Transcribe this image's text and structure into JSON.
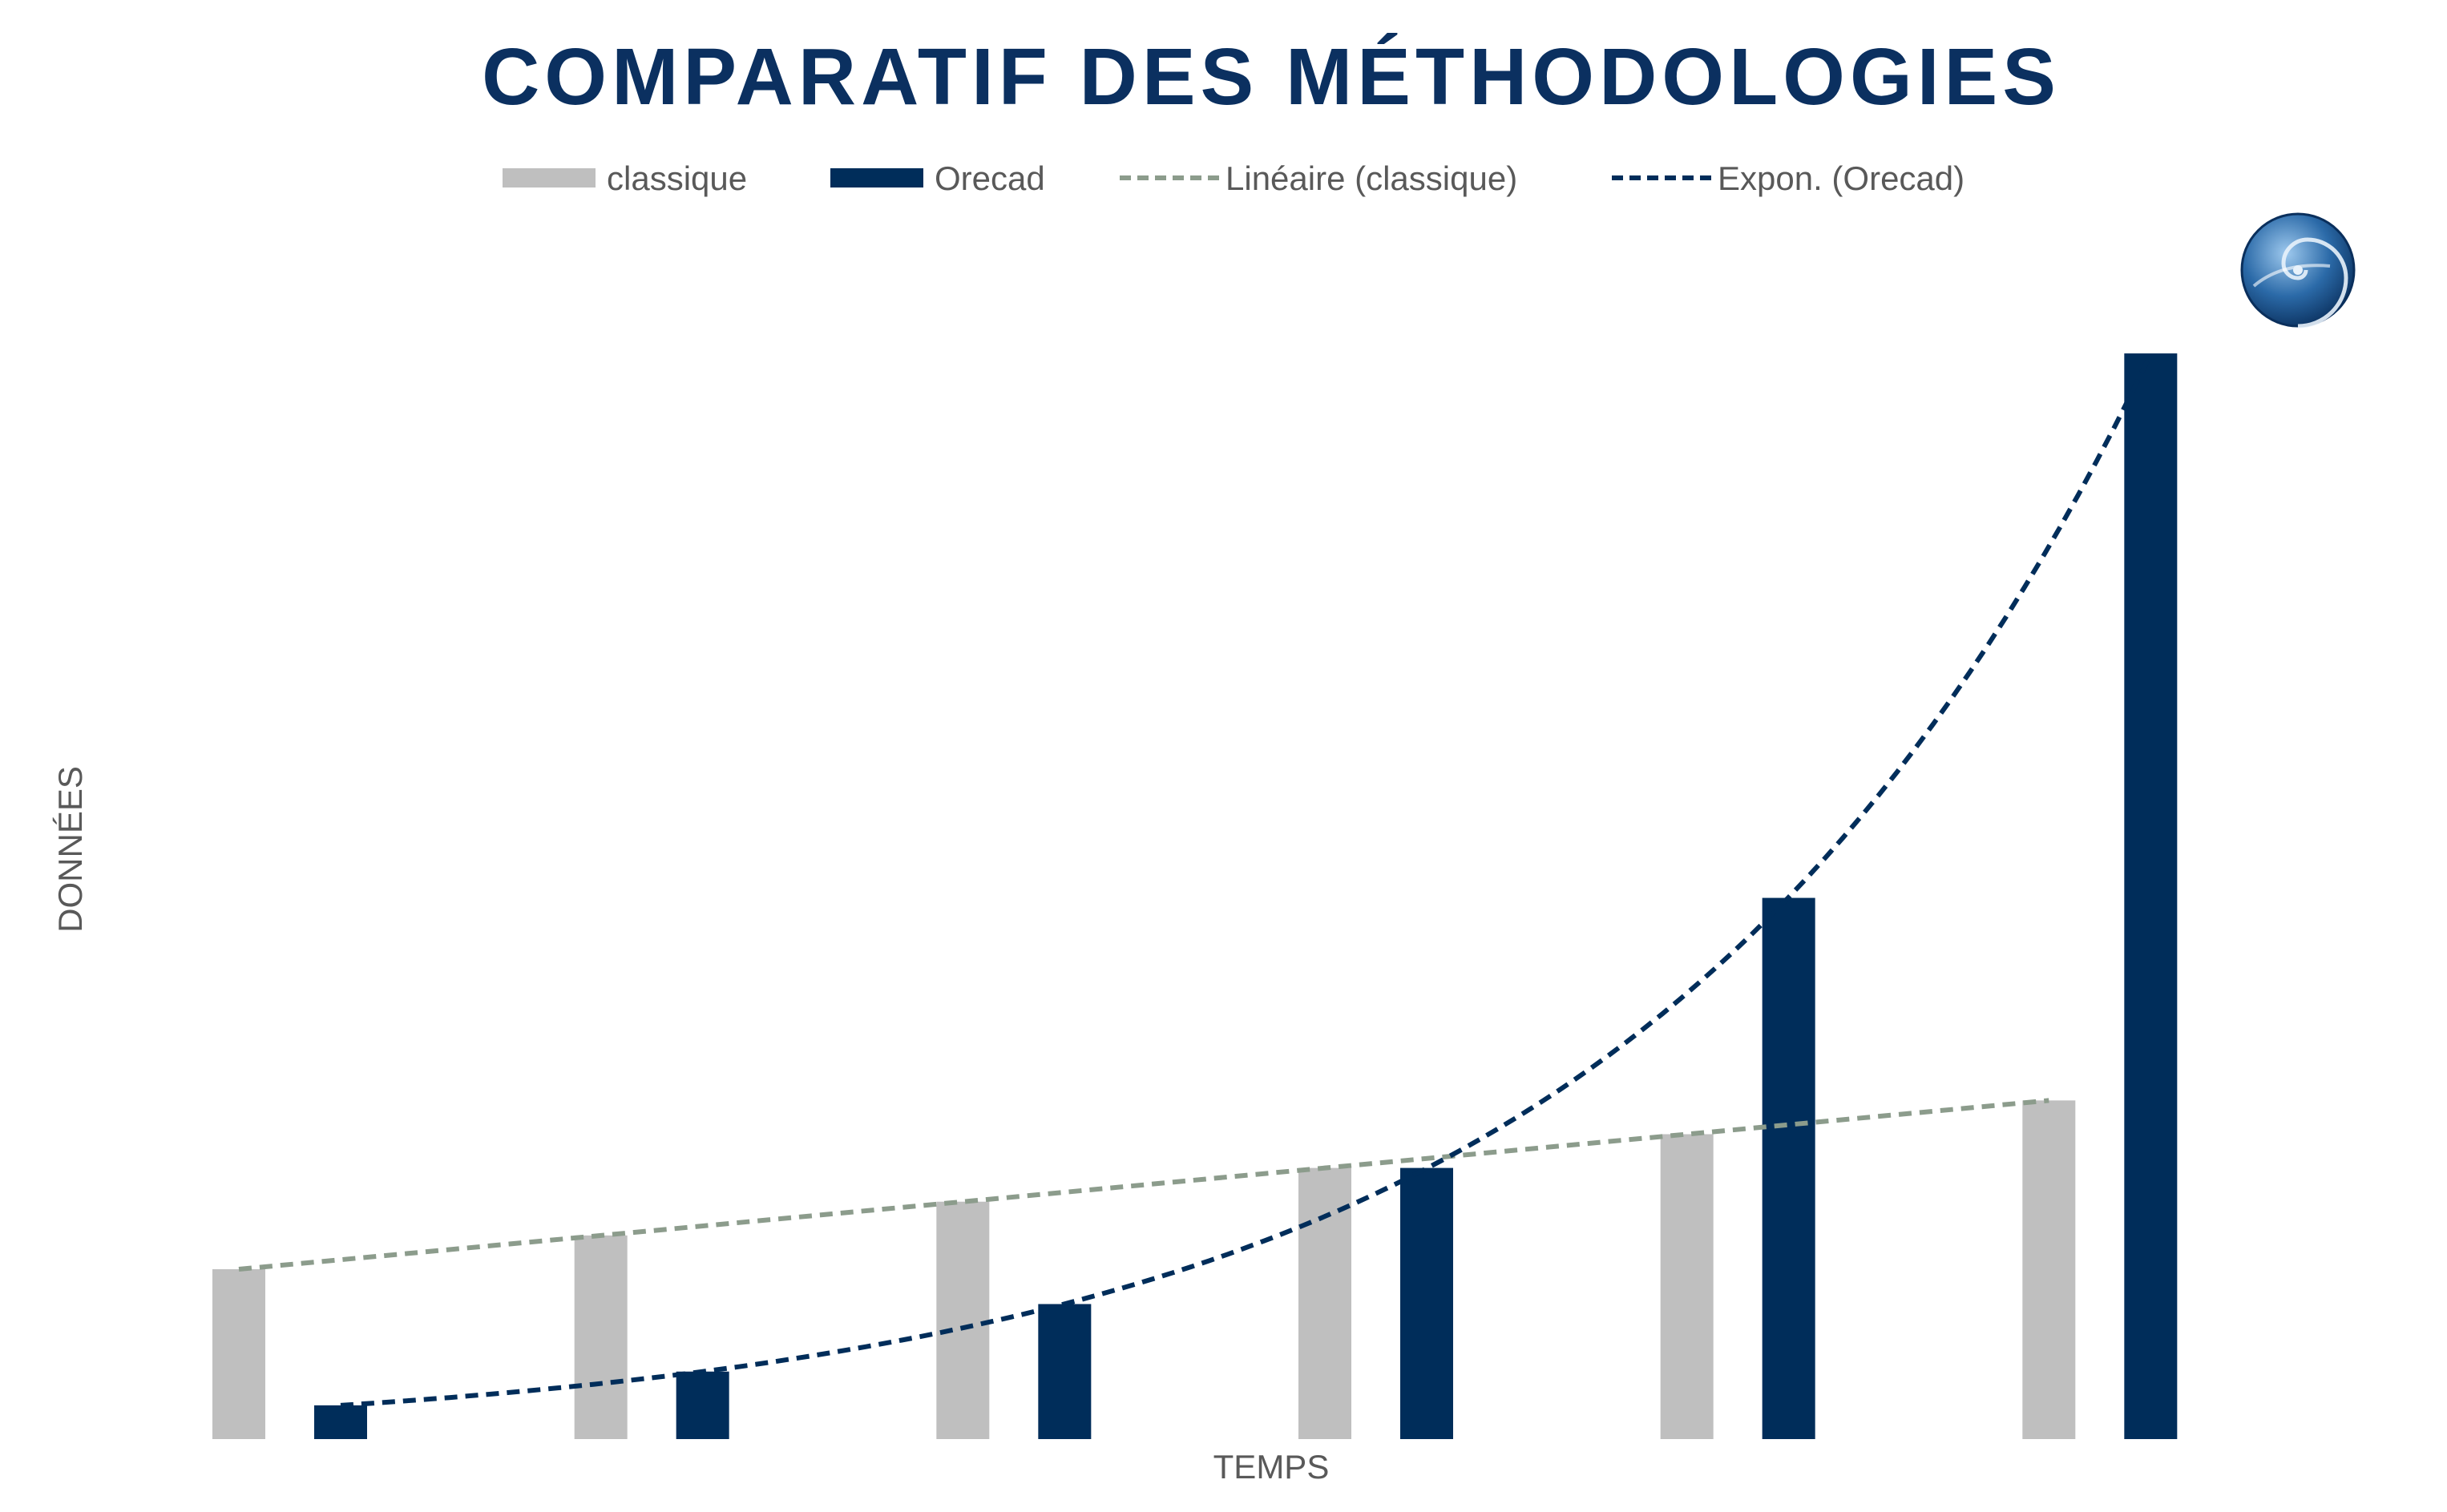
{
  "chart_data": {
    "type": "bar",
    "title": "COMPARATIF DES MÉTHODOLOGIES",
    "xlabel": "TEMPS",
    "ylabel": "DONNÉES",
    "categories": [
      "",
      "",
      "",
      "",
      "",
      ""
    ],
    "ylim": [
      0,
      100
    ],
    "grid": false,
    "legend_position": "top",
    "series": [
      {
        "name": "classique",
        "type": "bar",
        "color": "#bfbfbf",
        "values": [
          15.6,
          18.7,
          21.8,
          24.9,
          28.0,
          31.1
        ]
      },
      {
        "name": "Orecad",
        "type": "bar",
        "color": "#002d5a",
        "values": [
          3.1,
          6.2,
          12.4,
          24.9,
          49.7,
          99.7
        ]
      },
      {
        "name": "Linéaire (classique)",
        "type": "trendline-linear",
        "color": "#8c9c8c",
        "dash": true,
        "of": "classique"
      },
      {
        "name": "Expon. (Orecad)",
        "type": "trendline-exponential",
        "color": "#002d5a",
        "dash": true,
        "of": "Orecad"
      }
    ]
  },
  "logo": {
    "icon": "spiral-logo-icon"
  }
}
